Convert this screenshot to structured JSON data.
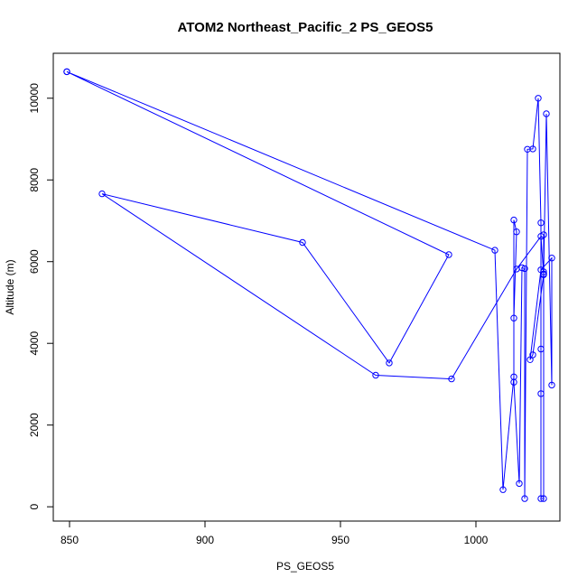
{
  "chart_data": {
    "type": "line",
    "title": "ATOM2 Northeast_Pacific_2 PS_GEOS5",
    "xlabel": "PS_GEOS5",
    "ylabel": "Altitude (m)",
    "xlim": [
      844,
      1031
    ],
    "ylim": [
      -350,
      11100
    ],
    "x_ticks": [
      850,
      900,
      950,
      1000
    ],
    "y_ticks": [
      0,
      2000,
      4000,
      6000,
      8000,
      10000
    ],
    "grid": false,
    "legend": "none",
    "series": [
      {
        "color": "#0000ff",
        "marker": "open-circle",
        "points": [
          [
            849,
            10650
          ],
          [
            1007,
            6280
          ],
          [
            1010,
            420
          ],
          [
            1014,
            3180
          ],
          [
            1014,
            7020
          ],
          [
            1015,
            6730
          ],
          [
            1014,
            4620
          ],
          [
            1014,
            3050
          ],
          [
            1016,
            570
          ],
          [
            1017,
            5850
          ],
          [
            1018,
            5830
          ],
          [
            1018,
            200
          ],
          [
            1019,
            8750
          ],
          [
            1021,
            8760
          ],
          [
            1023,
            10000
          ],
          [
            1024,
            6950
          ],
          [
            1024,
            2770
          ],
          [
            1024,
            3860
          ],
          [
            1024,
            200
          ],
          [
            1025,
            200
          ],
          [
            1025,
            6660
          ],
          [
            1025,
            5750
          ],
          [
            1025,
            5700
          ],
          [
            1026,
            9620
          ],
          [
            1028,
            2980
          ],
          [
            1028,
            6090
          ],
          [
            1024,
            5800
          ],
          [
            1020,
            3600
          ],
          [
            1021,
            3720
          ],
          [
            1025,
            5680
          ],
          [
            1024,
            6620
          ],
          [
            1015,
            5820
          ],
          [
            991,
            3130
          ],
          [
            963,
            3220
          ],
          [
            862,
            7660
          ],
          [
            936,
            6470
          ],
          [
            968,
            3520
          ],
          [
            990,
            6170
          ],
          [
            849,
            10650
          ]
        ]
      }
    ]
  }
}
